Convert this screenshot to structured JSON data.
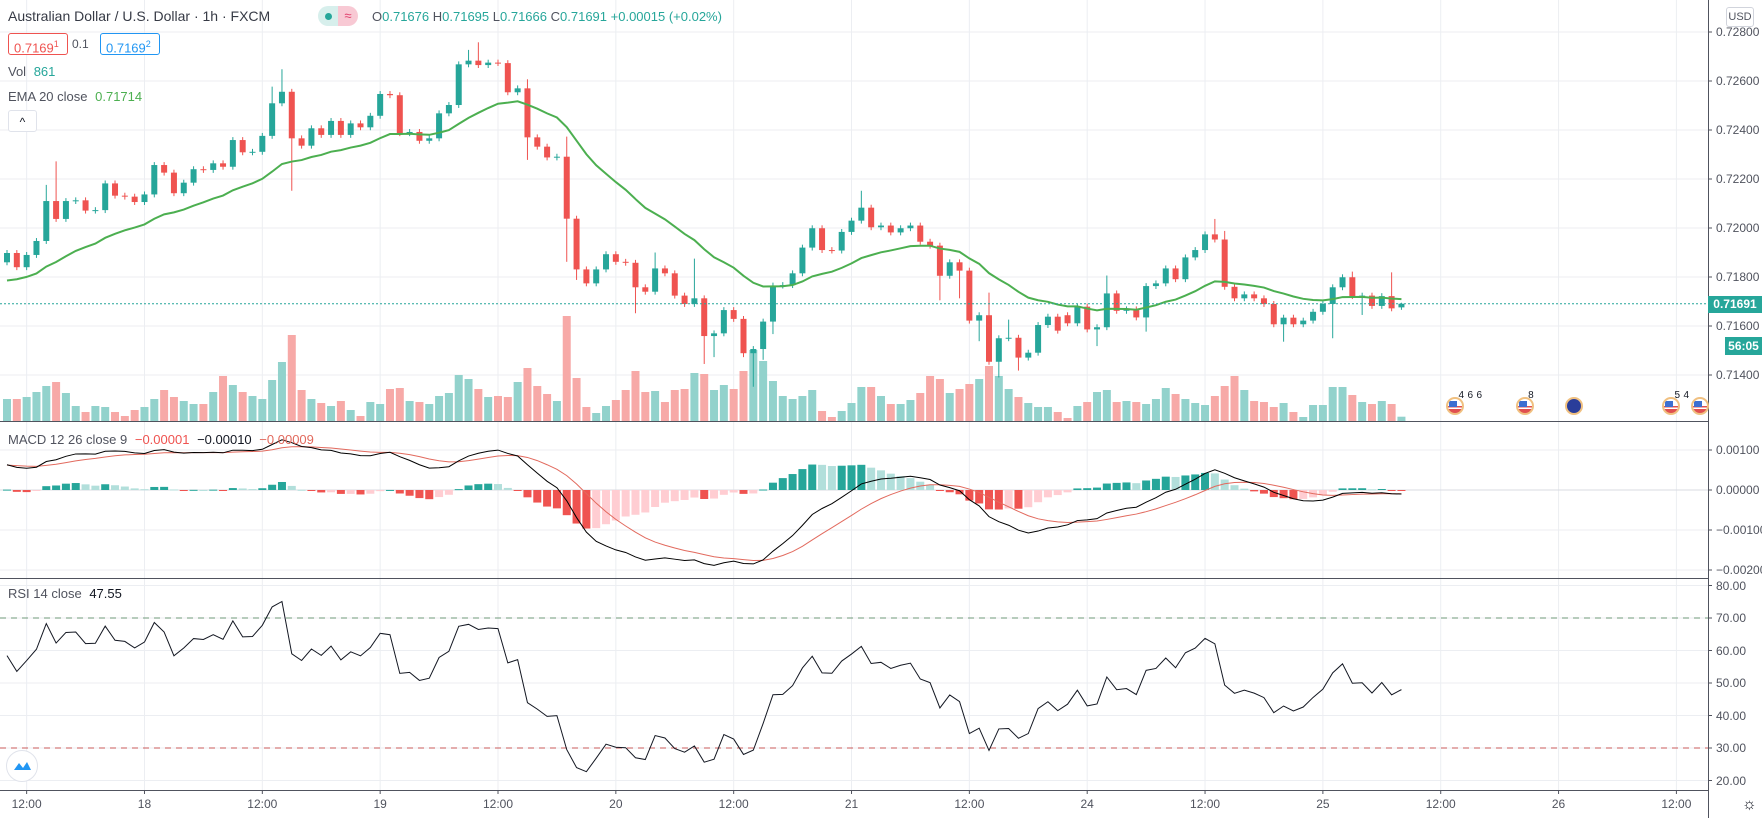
{
  "header": {
    "title": "Australian Dollar / U.S. Dollar · 1h · FXCM",
    "market_status_icon": "≈",
    "o_label": "O",
    "o": "0.71676",
    "h_label": "H",
    "h": "0.71695",
    "l_label": "L",
    "l": "0.71666",
    "c_label": "C",
    "c": "0.71691",
    "change": "+0.00015 (+0.02%)"
  },
  "trade": {
    "sell_main": "0.7169",
    "sell_pip": "1",
    "spread": "0.1",
    "buy_main": "0.7169",
    "buy_pip": "2"
  },
  "legend": {
    "vol_label": "Vol",
    "vol_value": "861",
    "ema_label": "EMA 20 close",
    "ema_value": "0.71714",
    "collapse_icon": "^",
    "macd_label": "MACD 12 26 close 9",
    "macd_hist": "−0.00001",
    "macd_value": "−0.00010",
    "macd_signal": "−0.00009",
    "rsi_label": "RSI 14 close",
    "rsi_value": "47.55"
  },
  "price_axis": {
    "currency": "USD",
    "ticks": [
      "0.72800",
      "0.72600",
      "0.72400",
      "0.72200",
      "0.72000",
      "0.71800",
      "0.71600",
      "0.71400"
    ],
    "last_price": "0.71691",
    "countdown": "56:05"
  },
  "macd_axis": {
    "ticks": [
      "0.00100",
      "0.00000",
      "−0.00100",
      "−0.00200"
    ]
  },
  "rsi_axis": {
    "ticks": [
      "80.00",
      "70.00",
      "60.00",
      "50.00",
      "40.00",
      "30.00",
      "20.00"
    ]
  },
  "time_axis": {
    "labels": [
      "12:00",
      "18",
      "12:00",
      "19",
      "12:00",
      "20",
      "12:00",
      "21",
      "12:00",
      "24",
      "12:00",
      "25",
      "12:00",
      "26",
      "12:00"
    ],
    "first_label_bar": 2,
    "bars_per_label": 12
  },
  "events": [
    {
      "flag": "us",
      "counts": [
        "4",
        "6",
        "6"
      ],
      "bar": 147.5
    },
    {
      "flag": "us",
      "counts": [
        "8"
      ],
      "bar": 154.6
    },
    {
      "flag": "au",
      "counts": [],
      "bar": 159.6
    },
    {
      "flag": "us",
      "counts": [
        "5",
        "4"
      ],
      "bar": 169.5
    },
    {
      "flag": "us",
      "counts": [],
      "bar": 172.4
    }
  ],
  "colors": {
    "up": "#26a69a",
    "down": "#ef5350",
    "vol_up": "#92d2cc",
    "vol_down": "#f7a9a7",
    "ema": "#4caf50",
    "macd": "#000000",
    "signal": "#e26a5e",
    "hist_up_strong": "#26a69a",
    "hist_up_weak": "#b2dfdb",
    "hist_down_strong": "#ef5350",
    "hist_down_weak": "#ffcdd2",
    "grid": "#eceef2"
  },
  "chart_data": {
    "type": "candlestick",
    "title": "Australian Dollar / U.S. Dollar · 1h · FXCM",
    "ylim": [
      0.7133,
      0.7289
    ],
    "first_open": 0.7186,
    "default_wick": 0.00012,
    "close": [
      0.71898,
      0.7184,
      0.7189,
      0.71947,
      0.7211,
      0.72037,
      0.7211,
      0.72113,
      0.72071,
      0.72073,
      0.72182,
      0.72132,
      0.72128,
      0.72106,
      0.72137,
      0.72257,
      0.72226,
      0.72142,
      0.72185,
      0.7224,
      0.72237,
      0.72264,
      0.7225,
      0.72359,
      0.72309,
      0.72311,
      0.72376,
      0.72509,
      0.72556,
      0.72366,
      0.72336,
      0.72407,
      0.7238,
      0.72437,
      0.7238,
      0.72427,
      0.72411,
      0.72458,
      0.72547,
      0.72542,
      0.72387,
      0.72392,
      0.72356,
      0.72366,
      0.72468,
      0.72502,
      0.72668,
      0.72683,
      0.72665,
      0.72675,
      0.72673,
      0.72554,
      0.7257,
      0.7237,
      0.72332,
      0.72288,
      0.72291,
      0.72038,
      0.71831,
      0.71774,
      0.71831,
      0.71893,
      0.71862,
      0.71858,
      0.71758,
      0.7174,
      0.71835,
      0.71815,
      0.71724,
      0.7169,
      0.71713,
      0.71559,
      0.7157,
      0.71665,
      0.71629,
      0.71489,
      0.71506,
      0.71618,
      0.71765,
      0.71767,
      0.71815,
      0.7192,
      0.71999,
      0.7191,
      0.71908,
      0.71984,
      0.7203,
      0.72083,
      0.72003,
      0.7201,
      0.71982,
      0.71999,
      0.7201,
      0.71944,
      0.71928,
      0.71805,
      0.7186,
      0.71826,
      0.71622,
      0.71644,
      0.71454,
      0.7155,
      0.71552,
      0.71471,
      0.71491,
      0.71604,
      0.71638,
      0.71581,
      0.71611,
      0.71679,
      0.71586,
      0.71595,
      0.71733,
      0.71662,
      0.71668,
      0.71635,
      0.71763,
      0.71774,
      0.71835,
      0.71791,
      0.7188,
      0.7191,
      0.71974,
      0.71953,
      0.7176,
      0.71713,
      0.71729,
      0.71713,
      0.7169,
      0.71607,
      0.71634,
      0.71607,
      0.71622,
      0.71658,
      0.7169,
      0.71758,
      0.71799,
      0.71722,
      0.71724,
      0.71682,
      0.71722,
      0.71672,
      0.71691
    ],
    "open_overrides": {
      "108": 0.71644,
      "142": 0.71676
    },
    "wick_overrides": {
      "4": [
        0.72176,
        null
      ],
      "5": [
        0.72272,
        null
      ],
      "27": [
        0.72577,
        null
      ],
      "28": [
        0.72648,
        null
      ],
      "29": [
        null,
        0.72152
      ],
      "47": [
        0.72727,
        null
      ],
      "48": [
        0.72758,
        null
      ],
      "53": [
        0.72607,
        0.72278
      ],
      "57": [
        0.72373,
        0.71862
      ],
      "58": [
        null,
        0.71788
      ],
      "64": [
        null,
        0.71652
      ],
      "66": [
        0.719,
        null
      ],
      "70": [
        0.71875,
        null
      ],
      "71": [
        null,
        0.71445
      ],
      "72": [
        null,
        0.71473
      ],
      "75": [
        null,
        0.71473
      ],
      "76": [
        null,
        0.71352
      ],
      "77": [
        null,
        0.71462
      ],
      "78": [
        null,
        0.71567
      ],
      "87": [
        0.72152,
        null
      ],
      "95": [
        null,
        0.71705
      ],
      "97": [
        null,
        0.71713
      ],
      "99": [
        null,
        0.71538
      ],
      "100": [
        0.71736,
        null
      ],
      "101": [
        null,
        0.7139
      ],
      "102": [
        0.71626,
        null
      ],
      "103": [
        null,
        0.71418
      ],
      "111": [
        null,
        0.71518
      ],
      "112": [
        0.71806,
        null
      ],
      "116": [
        null,
        0.71577
      ],
      "123": [
        0.72037,
        null
      ],
      "124": [
        0.71988,
        null
      ],
      "130": [
        null,
        0.71536
      ],
      "135": [
        null,
        0.7155
      ],
      "137": [
        0.71822,
        null
      ],
      "138": [
        null,
        0.71645
      ],
      "141": [
        0.71819,
        null
      ],
      "142": [
        0.71695,
        0.71666
      ]
    },
    "volume": [
      4400,
      4400,
      4800,
      5800,
      7000,
      7800,
      5600,
      3000,
      1800,
      3000,
      2800,
      1800,
      1000,
      2200,
      2800,
      4400,
      6200,
      4800,
      4000,
      3400,
      3400,
      5800,
      9000,
      7200,
      5800,
      5000,
      4400,
      8200,
      11800,
      17200,
      6200,
      4400,
      3600,
      3000,
      4000,
      2200,
      1000,
      3800,
      3400,
      6400,
      6600,
      4000,
      3800,
      3400,
      5000,
      5600,
      9200,
      8400,
      6400,
      4800,
      5000,
      4800,
      7800,
      10600,
      7000,
      5400,
      4000,
      21000,
      8600,
      2800,
      1600,
      3000,
      4200,
      6200,
      10000,
      5800,
      6000,
      3800,
      6200,
      6400,
      9600,
      9400,
      6200,
      7200,
      6400,
      10000,
      14200,
      12000,
      8000,
      5000,
      4400,
      5000,
      6200,
      2000,
      800,
      2000,
      3600,
      6800,
      6800,
      5000,
      3400,
      3400,
      4200,
      5600,
      9000,
      8400,
      5600,
      6400,
      7400,
      8400,
      11000,
      9000,
      6400,
      4800,
      3600,
      2800,
      2800,
      1800,
      600,
      3000,
      3800,
      5800,
      6200,
      3800,
      4000,
      3800,
      3400,
      4400,
      6600,
      5400,
      4400,
      3600,
      3200,
      5000,
      7000,
      9000,
      6200,
      4000,
      3800,
      2800,
      3600,
      1800,
      800,
      3200,
      3200,
      6800,
      6800,
      5200,
      3800,
      3400,
      4000,
      3400,
      861
    ],
    "ema": {
      "period": 20,
      "seed": 0.71774
    },
    "macd": {
      "fast": 12,
      "slow": 26,
      "signal": 9,
      "seed_fast": 0.7186,
      "seed_slow": 0.71795,
      "seed_signal": 0.00062
    },
    "rsi": {
      "period": 14,
      "seed_avg_gain": 0.00028,
      "seed_avg_loss": 0.00022,
      "upper": 70,
      "lower": 30
    }
  }
}
